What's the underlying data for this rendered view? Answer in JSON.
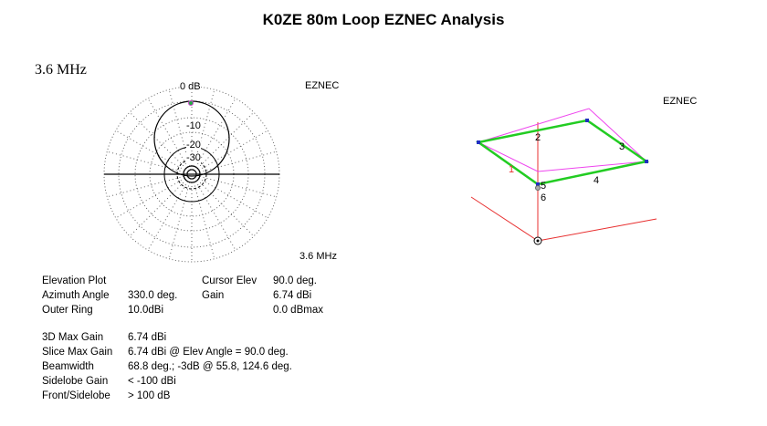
{
  "title": "K0ZE 80m Loop EZNEC Analysis",
  "frequency_heading": "3.6 MHz",
  "polar_plot": {
    "brand": "EZNEC",
    "frequency": "3.6 MHz",
    "ring_labels": [
      "0 dB",
      "-10",
      "-20",
      "-30"
    ]
  },
  "view_3d": {
    "brand": "EZNEC",
    "wire_labels": [
      "1",
      "2",
      "3",
      "4",
      "5",
      "6"
    ],
    "colors": {
      "wires": "#22cc22",
      "pattern": "#ee44ee",
      "axes": "#e83030",
      "nodes": "#2030c0"
    }
  },
  "info": {
    "left": [
      {
        "label": "Elevation Plot",
        "value": ""
      },
      {
        "label": "Azimuth Angle",
        "value": "330.0 deg."
      },
      {
        "label": "Outer Ring",
        "value": "10.0dBi"
      }
    ],
    "right": [
      {
        "label": "Cursor Elev",
        "value": "90.0 deg."
      },
      {
        "label": "Gain",
        "value": "6.74 dBi"
      },
      {
        "label": "",
        "value": "0.0 dBmax"
      }
    ],
    "stats": [
      {
        "label": "3D Max Gain",
        "value": "6.74 dBi"
      },
      {
        "label": "Slice Max Gain",
        "value": "6.74 dBi @ Elev Angle = 90.0 deg."
      },
      {
        "label": "Beamwidth",
        "value": "68.8 deg.; -3dB @ 55.8, 124.6 deg."
      },
      {
        "label": "Sidelobe Gain",
        "value": "< -100 dBi"
      },
      {
        "label": "Front/Sidelobe",
        "value": "> 100 dB"
      }
    ]
  }
}
